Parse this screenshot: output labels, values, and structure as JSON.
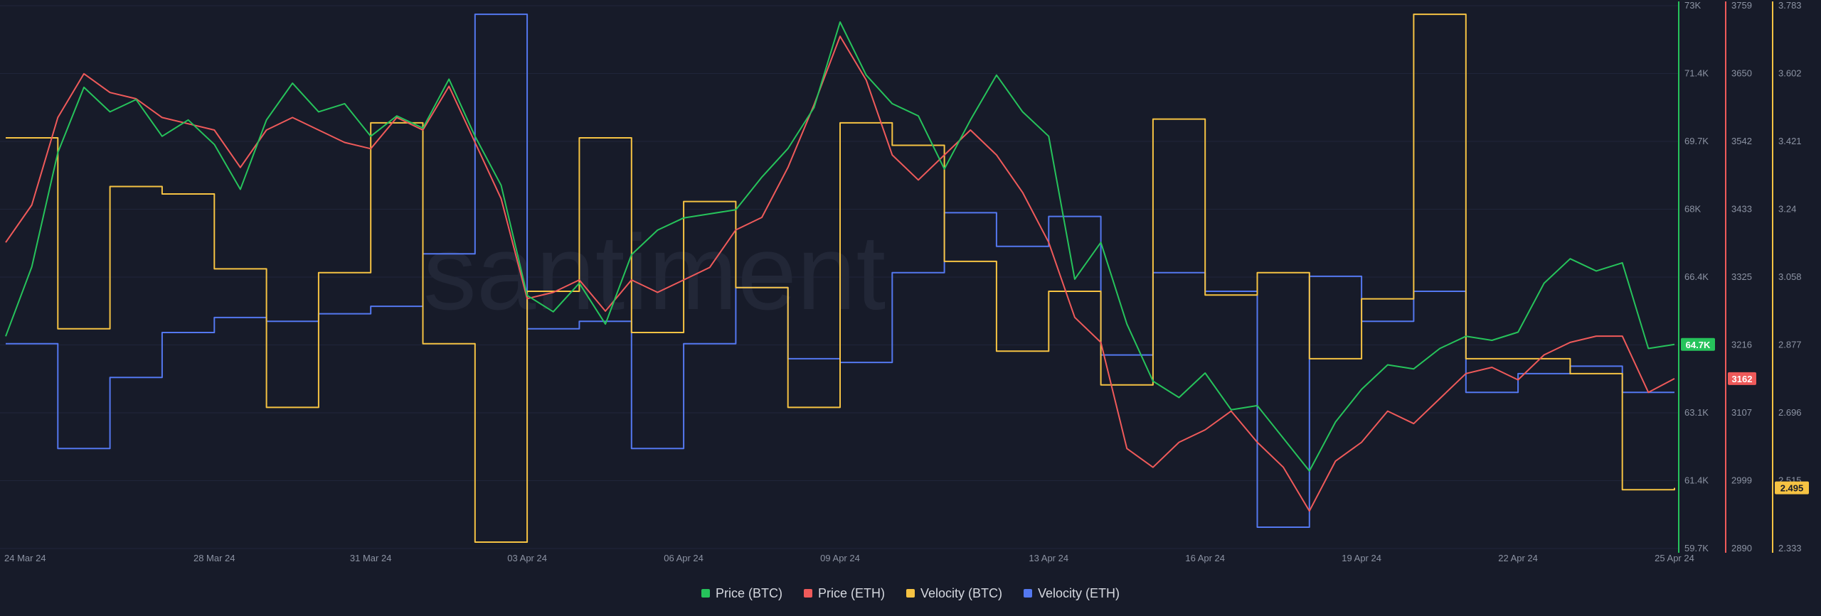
{
  "watermark": "santiment",
  "legend": [
    {
      "label": "Price (BTC)",
      "color": "#26c35b"
    },
    {
      "label": "Price (ETH)",
      "color": "#ef5a5a"
    },
    {
      "label": "Velocity (BTC)",
      "color": "#f6c343"
    },
    {
      "label": "Velocity (ETH)",
      "color": "#5478f0"
    }
  ],
  "chart_data": {
    "type": "line",
    "title": "",
    "xlabel": "",
    "x_ticks": [
      "24 Mar 24",
      "28 Mar 24",
      "31 Mar 24",
      "03 Apr 24",
      "06 Apr 24",
      "09 Apr 24",
      "13 Apr 24",
      "16 Apr 24",
      "19 Apr 24",
      "22 Apr 24",
      "25 Apr 24"
    ],
    "x_range": [
      "2024-03-24",
      "2024-04-25"
    ],
    "axes": [
      {
        "series": "Price (BTC)",
        "color": "#26c35b",
        "ticks": [
          "73K",
          "71.4K",
          "69.7K",
          "68K",
          "66.4K",
          "64.7K",
          "63.1K",
          "61.4K",
          "59.7K"
        ],
        "range": [
          59700,
          73000
        ],
        "current": "64.7K"
      },
      {
        "series": "Price (ETH)",
        "color": "#ef5a5a",
        "ticks": [
          "3759",
          "3650",
          "3542",
          "3433",
          "3325",
          "3216",
          "3107",
          "2999",
          "2890"
        ],
        "range": [
          2890,
          3759
        ],
        "current": "3162"
      },
      {
        "series": "Velocity (BTC)",
        "color": "#f6c343",
        "ticks": [
          "3.783",
          "3.602",
          "3.421",
          "3.24",
          "3.058",
          "2.877",
          "2.696",
          "2.515",
          "2.333"
        ],
        "range": [
          2.333,
          3.783
        ],
        "current": "2.495"
      }
    ],
    "series": [
      {
        "name": "Price (BTC)",
        "color": "#26c35b",
        "points": [
          [
            "2024-03-24",
            64900
          ],
          [
            "2024-03-24T12:00",
            66600
          ],
          [
            "2024-03-25",
            69400
          ],
          [
            "2024-03-25T12:00",
            71000
          ],
          [
            "2024-03-26",
            70400
          ],
          [
            "2024-03-26T12:00",
            70700
          ],
          [
            "2024-03-27",
            69800
          ],
          [
            "2024-03-27T12:00",
            70200
          ],
          [
            "2024-03-28",
            69600
          ],
          [
            "2024-03-28T12:00",
            68500
          ],
          [
            "2024-03-29",
            70200
          ],
          [
            "2024-03-29T12:00",
            71100
          ],
          [
            "2024-03-30",
            70400
          ],
          [
            "2024-03-30T12:00",
            70600
          ],
          [
            "2024-03-31",
            69800
          ],
          [
            "2024-03-31T12:00",
            70300
          ],
          [
            "2024-04-01",
            70000
          ],
          [
            "2024-04-01T12:00",
            71200
          ],
          [
            "2024-04-02",
            69800
          ],
          [
            "2024-04-02T12:00",
            68600
          ],
          [
            "2024-04-03",
            65900
          ],
          [
            "2024-04-03T12:00",
            65500
          ],
          [
            "2024-04-04",
            66200
          ],
          [
            "2024-04-04T12:00",
            65200
          ],
          [
            "2024-04-05",
            66900
          ],
          [
            "2024-04-05T12:00",
            67500
          ],
          [
            "2024-04-06",
            67800
          ],
          [
            "2024-04-06T12:00",
            67900
          ],
          [
            "2024-04-07",
            68000
          ],
          [
            "2024-04-07T12:00",
            68800
          ],
          [
            "2024-04-08",
            69500
          ],
          [
            "2024-04-08T12:00",
            70500
          ],
          [
            "2024-04-09",
            72600
          ],
          [
            "2024-04-09T12:00",
            71300
          ],
          [
            "2024-04-10",
            70600
          ],
          [
            "2024-04-10T12:00",
            70300
          ],
          [
            "2024-04-11",
            69000
          ],
          [
            "2024-04-11T12:00",
            70200
          ],
          [
            "2024-04-12",
            71300
          ],
          [
            "2024-04-12T12:00",
            70400
          ],
          [
            "2024-04-13",
            69800
          ],
          [
            "2024-04-13T12:00",
            66300
          ],
          [
            "2024-04-14",
            67200
          ],
          [
            "2024-04-14T12:00",
            65200
          ],
          [
            "2024-04-15",
            63800
          ],
          [
            "2024-04-15T12:00",
            63400
          ],
          [
            "2024-04-16",
            64000
          ],
          [
            "2024-04-16T12:00",
            63100
          ],
          [
            "2024-04-17",
            63200
          ],
          [
            "2024-04-17T12:00",
            62400
          ],
          [
            "2024-04-18",
            61600
          ],
          [
            "2024-04-18T12:00",
            62800
          ],
          [
            "2024-04-19",
            63600
          ],
          [
            "2024-04-19T12:00",
            64200
          ],
          [
            "2024-04-20",
            64100
          ],
          [
            "2024-04-20T12:00",
            64600
          ],
          [
            "2024-04-21",
            64900
          ],
          [
            "2024-04-21T12:00",
            64800
          ],
          [
            "2024-04-22",
            65000
          ],
          [
            "2024-04-22T12:00",
            66200
          ],
          [
            "2024-04-23",
            66800
          ],
          [
            "2024-04-23T12:00",
            66500
          ],
          [
            "2024-04-24",
            66700
          ],
          [
            "2024-04-24T12:00",
            64600
          ],
          [
            "2024-04-25",
            64700
          ]
        ]
      },
      {
        "name": "Price (ETH)",
        "color": "#ef5a5a",
        "points": [
          [
            "2024-03-24",
            3380
          ],
          [
            "2024-03-24T12:00",
            3440
          ],
          [
            "2024-03-25",
            3580
          ],
          [
            "2024-03-25T12:00",
            3650
          ],
          [
            "2024-03-26",
            3620
          ],
          [
            "2024-03-26T12:00",
            3610
          ],
          [
            "2024-03-27",
            3580
          ],
          [
            "2024-03-27T12:00",
            3570
          ],
          [
            "2024-03-28",
            3560
          ],
          [
            "2024-03-28T12:00",
            3500
          ],
          [
            "2024-03-29",
            3560
          ],
          [
            "2024-03-29T12:00",
            3580
          ],
          [
            "2024-03-30",
            3560
          ],
          [
            "2024-03-30T12:00",
            3540
          ],
          [
            "2024-03-31",
            3530
          ],
          [
            "2024-03-31T12:00",
            3580
          ],
          [
            "2024-04-01",
            3560
          ],
          [
            "2024-04-01T12:00",
            3630
          ],
          [
            "2024-04-02",
            3540
          ],
          [
            "2024-04-02T12:00",
            3450
          ],
          [
            "2024-04-03",
            3290
          ],
          [
            "2024-04-03T12:00",
            3300
          ],
          [
            "2024-04-04",
            3320
          ],
          [
            "2024-04-04T12:00",
            3270
          ],
          [
            "2024-04-05",
            3320
          ],
          [
            "2024-04-05T12:00",
            3300
          ],
          [
            "2024-04-06",
            3320
          ],
          [
            "2024-04-06T12:00",
            3340
          ],
          [
            "2024-04-07",
            3400
          ],
          [
            "2024-04-07T12:00",
            3420
          ],
          [
            "2024-04-08",
            3500
          ],
          [
            "2024-04-08T12:00",
            3600
          ],
          [
            "2024-04-09",
            3710
          ],
          [
            "2024-04-09T12:00",
            3640
          ],
          [
            "2024-04-10",
            3520
          ],
          [
            "2024-04-10T12:00",
            3480
          ],
          [
            "2024-04-11",
            3520
          ],
          [
            "2024-04-11T12:00",
            3560
          ],
          [
            "2024-04-12",
            3520
          ],
          [
            "2024-04-12T12:00",
            3460
          ],
          [
            "2024-04-13",
            3380
          ],
          [
            "2024-04-13T12:00",
            3260
          ],
          [
            "2024-04-14",
            3220
          ],
          [
            "2024-04-14T12:00",
            3050
          ],
          [
            "2024-04-15",
            3020
          ],
          [
            "2024-04-15T12:00",
            3060
          ],
          [
            "2024-04-16",
            3080
          ],
          [
            "2024-04-16T12:00",
            3110
          ],
          [
            "2024-04-17",
            3060
          ],
          [
            "2024-04-17T12:00",
            3020
          ],
          [
            "2024-04-18",
            2950
          ],
          [
            "2024-04-18T12:00",
            3030
          ],
          [
            "2024-04-19",
            3060
          ],
          [
            "2024-04-19T12:00",
            3110
          ],
          [
            "2024-04-20",
            3090
          ],
          [
            "2024-04-20T12:00",
            3130
          ],
          [
            "2024-04-21",
            3170
          ],
          [
            "2024-04-21T12:00",
            3180
          ],
          [
            "2024-04-22",
            3160
          ],
          [
            "2024-04-22T12:00",
            3200
          ],
          [
            "2024-04-23",
            3220
          ],
          [
            "2024-04-23T12:00",
            3230
          ],
          [
            "2024-04-24",
            3230
          ],
          [
            "2024-04-24T12:00",
            3140
          ],
          [
            "2024-04-25",
            3162
          ]
        ]
      },
      {
        "name": "Velocity (BTC)",
        "color": "#f6c343",
        "step": true,
        "points": [
          [
            "2024-03-24",
            3.43
          ],
          [
            "2024-03-25",
            2.92
          ],
          [
            "2024-03-26",
            3.3
          ],
          [
            "2024-03-27",
            3.28
          ],
          [
            "2024-03-28",
            3.08
          ],
          [
            "2024-03-29",
            2.71
          ],
          [
            "2024-03-30",
            3.07
          ],
          [
            "2024-03-31",
            3.47
          ],
          [
            "2024-04-01",
            2.88
          ],
          [
            "2024-04-02",
            2.35
          ],
          [
            "2024-04-03",
            3.02
          ],
          [
            "2024-04-04",
            3.43
          ],
          [
            "2024-04-05",
            2.91
          ],
          [
            "2024-04-06",
            3.26
          ],
          [
            "2024-04-07",
            3.03
          ],
          [
            "2024-04-08",
            2.71
          ],
          [
            "2024-04-09",
            3.47
          ],
          [
            "2024-04-10",
            3.41
          ],
          [
            "2024-04-11",
            3.1
          ],
          [
            "2024-04-12",
            2.86
          ],
          [
            "2024-04-13",
            3.02
          ],
          [
            "2024-04-14",
            2.77
          ],
          [
            "2024-04-15",
            3.48
          ],
          [
            "2024-04-16",
            3.01
          ],
          [
            "2024-04-17",
            3.07
          ],
          [
            "2024-04-18",
            2.84
          ],
          [
            "2024-04-19",
            3.0
          ],
          [
            "2024-04-20",
            3.76
          ],
          [
            "2024-04-21",
            2.84
          ],
          [
            "2024-04-22",
            2.84
          ],
          [
            "2024-04-23",
            2.8
          ],
          [
            "2024-04-24",
            2.49
          ],
          [
            "2024-04-25",
            2.495
          ]
        ]
      },
      {
        "name": "Velocity (ETH)",
        "color": "#5478f0",
        "step": true,
        "points": [
          [
            "2024-03-24",
            2.88
          ],
          [
            "2024-03-25",
            2.6
          ],
          [
            "2024-03-26",
            2.79
          ],
          [
            "2024-03-27",
            2.91
          ],
          [
            "2024-03-28",
            2.95
          ],
          [
            "2024-03-29",
            2.94
          ],
          [
            "2024-03-30",
            2.96
          ],
          [
            "2024-03-31",
            2.98
          ],
          [
            "2024-04-01",
            3.12
          ],
          [
            "2024-04-02",
            3.76
          ],
          [
            "2024-04-03",
            2.92
          ],
          [
            "2024-04-04",
            2.94
          ],
          [
            "2024-04-05",
            2.6
          ],
          [
            "2024-04-06",
            2.88
          ],
          [
            "2024-04-07",
            3.03
          ],
          [
            "2024-04-08",
            2.84
          ],
          [
            "2024-04-09",
            2.83
          ],
          [
            "2024-04-10",
            3.07
          ],
          [
            "2024-04-11",
            3.23
          ],
          [
            "2024-04-12",
            3.14
          ],
          [
            "2024-04-13",
            3.22
          ],
          [
            "2024-04-14",
            2.85
          ],
          [
            "2024-04-15",
            3.07
          ],
          [
            "2024-04-16",
            3.02
          ],
          [
            "2024-04-17",
            2.39
          ],
          [
            "2024-04-18",
            3.06
          ],
          [
            "2024-04-19",
            2.94
          ],
          [
            "2024-04-20",
            3.02
          ],
          [
            "2024-04-21",
            2.75
          ],
          [
            "2024-04-22",
            2.8
          ],
          [
            "2024-04-23",
            2.82
          ],
          [
            "2024-04-24",
            2.75
          ],
          [
            "2024-04-25",
            2.75
          ]
        ]
      }
    ]
  }
}
